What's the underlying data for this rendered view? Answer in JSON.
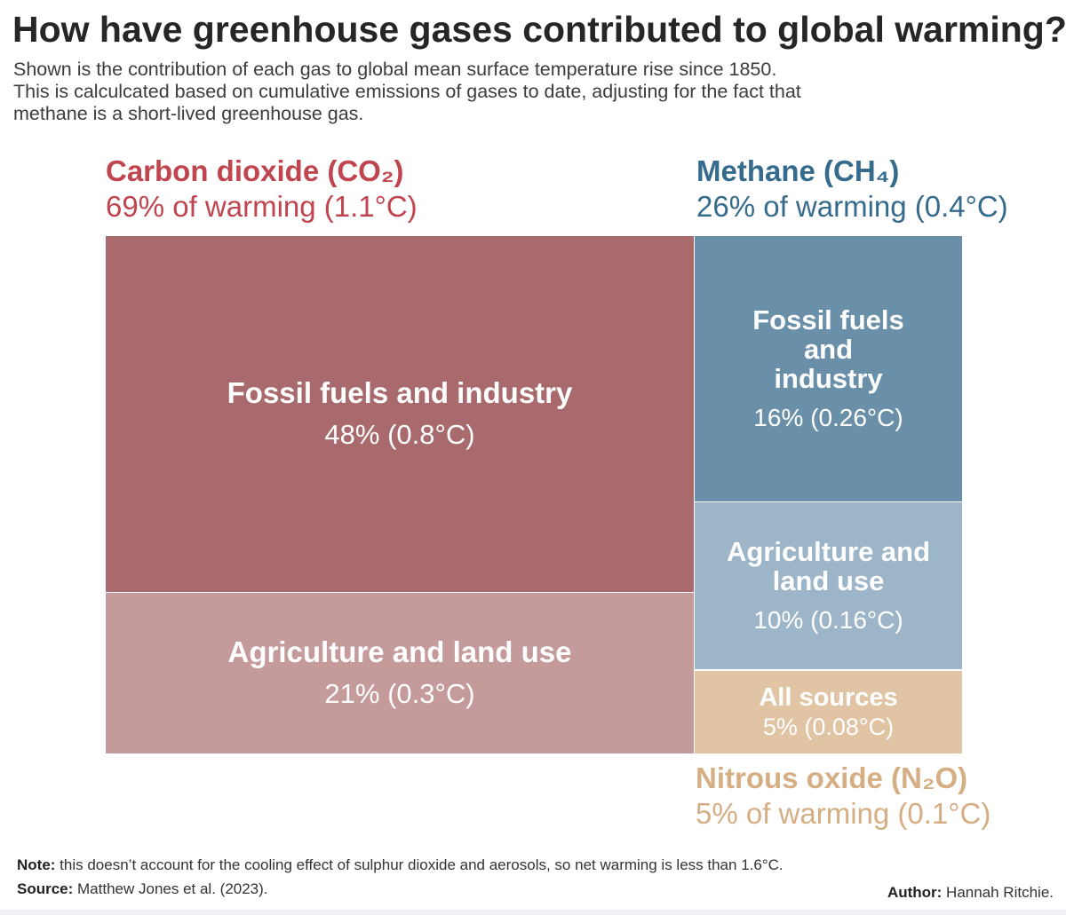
{
  "title": "How have greenhouse gases contributed to global warming?",
  "subtitle": [
    "Shown is the contribution of each gas to global mean surface temperature rise since 1850.",
    "This is calculcated based on cumulative emissions of gases to date, adjusting for the fact that",
    "methane is a short-lived greenhouse gas."
  ],
  "gases": {
    "co2": {
      "name": "Carbon dioxide (CO₂)",
      "total": "69% of warming (1.1°C)",
      "color": "#c0454f"
    },
    "ch4": {
      "name": "Methane (CH₄)",
      "total": "26% of warming (0.4°C)",
      "color": "#356b8c"
    },
    "n2o": {
      "name": "Nitrous oxide (N₂O)",
      "total": "5% of warming (0.1°C)",
      "color": "#d6ae84"
    }
  },
  "chart_data": {
    "type": "treemap",
    "title": "How have greenhouse gases contributed to global warming?",
    "unit": "percent of warming",
    "groups": [
      {
        "gas": "Carbon dioxide (CO₂)",
        "share": 69,
        "warming_c": 1.1,
        "children": [
          {
            "label": "Fossil fuels and industry",
            "value_text": "48% (0.8°C)",
            "share": 48,
            "warming_c": 0.8,
            "color": "#a86a6c"
          },
          {
            "label": "Agriculture and land use",
            "value_text": "21% (0.3°C)",
            "share": 21,
            "warming_c": 0.3,
            "color": "#c49a9b"
          }
        ]
      },
      {
        "gas": "Methane (CH₄)",
        "share": 26,
        "warming_c": 0.4,
        "children": [
          {
            "label": "Fossil fuels and industry",
            "value_text": "16% (0.26°C)",
            "share": 16,
            "warming_c": 0.26,
            "color": "#6a8fa9"
          },
          {
            "label": "Agriculture and land use",
            "value_text": "10% (0.16°C)",
            "share": 10,
            "warming_c": 0.16,
            "color": "#9db5c8"
          }
        ]
      },
      {
        "gas": "Nitrous oxide (N₂O)",
        "share": 5,
        "warming_c": 0.1,
        "children": [
          {
            "label": "All sources",
            "value_text": "5% (0.08°C)",
            "share": 5,
            "warming_c": 0.08,
            "color": "#e1c4a4"
          }
        ]
      }
    ]
  },
  "footer": {
    "note_label": "Note:",
    "note_text": " this doesn’t account for the cooling effect of sulphur dioxide and aerosols, so net warming is less than 1.6°C.",
    "source_label": "Source:",
    "source_text": " Matthew Jones et al. (2023).",
    "author_label": "Author:",
    "author_text": " Hannah Ritchie."
  }
}
